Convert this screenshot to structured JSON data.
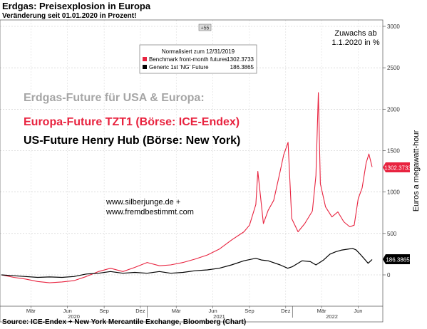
{
  "header": {
    "title": "Erdgas: Preisexplosion in Europa",
    "subtitle": "Veränderung seit 01.01.2020 in Prozent!"
  },
  "footer": {
    "source": "Source: ICE-Endex + New York Mercantile Exchange, Bloomberg (Chart)"
  },
  "overlay": {
    "heading": "Erdgas-Future für USA & Europa:",
    "europe_label": "Europa-Future TZT1 (Börse: ICE-Endex)",
    "us_label": "US-Future Henry Hub (Börse: New York)",
    "website_1": "www.silberjunge.de +",
    "website_2": "www.fremdbestimmt.com",
    "corner_badge": "+55",
    "zuwachs_line1": "Zuwachs ab",
    "zuwachs_line2": "1.1.2020 in %"
  },
  "colors": {
    "europe": "#e8233f",
    "us": "#000000",
    "heading": "#a6a6a6",
    "axis": "#555555"
  },
  "chart_data": {
    "type": "line",
    "title": "Erdgas: Preisexplosion in Europa",
    "subtitle": "Veränderung seit 01.01.2020 in Prozent!",
    "ylabel": "Euros a megawatt-hour",
    "ylim": [
      -300,
      3000
    ],
    "yticks": [
      0,
      500,
      1000,
      1500,
      2000,
      2500,
      3000
    ],
    "grid": true,
    "x_tick_labels": [
      "Mär",
      "Jun",
      "Sep",
      "Dez",
      "Mär",
      "Jun",
      "Sep",
      "Dez",
      "Mär",
      "Jun"
    ],
    "x_year_labels": [
      "2020",
      "2021",
      "2022"
    ],
    "legend": {
      "position": "top-center",
      "title": "Normalisiert zum 12/31/2019",
      "entries": [
        {
          "name": "Benchmark front-month futures",
          "value": "1302.3733"
        },
        {
          "name": "Generic 1st 'NG' Future",
          "value": "186.3865"
        }
      ]
    },
    "last_value_labels": [
      "1302.3733",
      "186.3865"
    ],
    "x_range": [
      "2020-01-01",
      "2022-07-20"
    ],
    "series": [
      {
        "name": "Benchmark front-month futures",
        "color": "#e8233f",
        "x": [
          "2020-01-01",
          "2020-02-01",
          "2020-03-01",
          "2020-04-01",
          "2020-05-01",
          "2020-06-01",
          "2020-07-01",
          "2020-08-01",
          "2020-09-01",
          "2020-10-01",
          "2020-11-01",
          "2020-12-01",
          "2021-01-01",
          "2021-02-01",
          "2021-03-01",
          "2021-04-01",
          "2021-05-01",
          "2021-06-01",
          "2021-07-01",
          "2021-08-01",
          "2021-09-01",
          "2021-09-15",
          "2021-10-01",
          "2021-10-06",
          "2021-10-20",
          "2021-11-01",
          "2021-11-15",
          "2021-12-01",
          "2021-12-10",
          "2021-12-21",
          "2021-12-30",
          "2022-01-15",
          "2022-02-01",
          "2022-02-20",
          "2022-03-01",
          "2022-03-07",
          "2022-03-12",
          "2022-03-25",
          "2022-04-10",
          "2022-04-25",
          "2022-05-10",
          "2022-05-25",
          "2022-06-05",
          "2022-06-15",
          "2022-06-25",
          "2022-07-05",
          "2022-07-12",
          "2022-07-20"
        ],
        "values": [
          0,
          -30,
          -50,
          -80,
          -95,
          -85,
          -70,
          -20,
          40,
          80,
          40,
          90,
          150,
          110,
          120,
          150,
          190,
          240,
          310,
          420,
          520,
          600,
          850,
          1250,
          620,
          780,
          900,
          1250,
          1450,
          1600,
          680,
          520,
          620,
          770,
          1200,
          2200,
          1100,
          820,
          700,
          760,
          640,
          580,
          600,
          920,
          1050,
          1350,
          1460,
          1302
        ]
      },
      {
        "name": "Generic 1st 'NG' Future",
        "color": "#000000",
        "x": [
          "2020-01-01",
          "2020-02-01",
          "2020-03-01",
          "2020-04-01",
          "2020-05-01",
          "2020-06-01",
          "2020-07-01",
          "2020-08-01",
          "2020-09-01",
          "2020-10-01",
          "2020-11-01",
          "2020-12-01",
          "2021-01-01",
          "2021-02-01",
          "2021-03-01",
          "2021-04-01",
          "2021-05-01",
          "2021-06-01",
          "2021-07-01",
          "2021-08-01",
          "2021-09-01",
          "2021-10-01",
          "2021-10-15",
          "2021-11-01",
          "2021-12-01",
          "2021-12-20",
          "2022-01-01",
          "2022-01-25",
          "2022-02-15",
          "2022-03-01",
          "2022-03-20",
          "2022-04-05",
          "2022-04-20",
          "2022-05-05",
          "2022-05-20",
          "2022-06-01",
          "2022-06-10",
          "2022-06-20",
          "2022-07-01",
          "2022-07-10",
          "2022-07-20"
        ],
        "values": [
          0,
          -10,
          -20,
          -30,
          -25,
          -30,
          -20,
          10,
          20,
          40,
          20,
          30,
          20,
          40,
          20,
          30,
          50,
          60,
          80,
          120,
          170,
          200,
          180,
          170,
          120,
          80,
          100,
          170,
          160,
          120,
          180,
          250,
          280,
          300,
          310,
          320,
          300,
          250,
          190,
          140,
          186
        ]
      }
    ]
  }
}
